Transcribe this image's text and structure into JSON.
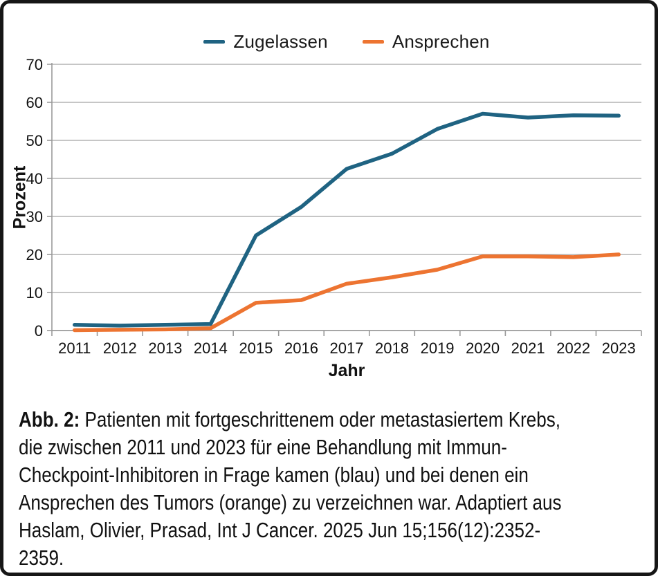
{
  "chart_data": {
    "type": "line",
    "categories": [
      "2011",
      "2012",
      "2013",
      "2014",
      "2015",
      "2016",
      "2017",
      "2018",
      "2019",
      "2020",
      "2021",
      "2022",
      "2023"
    ],
    "series": [
      {
        "name": "Zugelassen",
        "color": "#1f6382",
        "values": [
          1.5,
          1.3,
          1.5,
          1.7,
          25,
          32.5,
          42.5,
          46.5,
          53,
          57,
          56,
          56.6,
          56.5
        ]
      },
      {
        "name": "Ansprechen",
        "color": "#ed7431",
        "values": [
          0.1,
          0.2,
          0.3,
          0.6,
          7.3,
          8,
          12.3,
          14,
          16,
          19.5,
          19.5,
          19.3,
          20
        ]
      }
    ],
    "title": "",
    "xlabel": "Jahr",
    "ylabel": "Prozent",
    "ylim": [
      0,
      70
    ],
    "yticks": [
      0,
      10,
      20,
      30,
      40,
      50,
      60,
      70
    ],
    "grid": true,
    "legend_position": "top"
  },
  "caption": {
    "prefix": "Abb. 2:",
    "lines": [
      "Patienten mit fortgeschrittenem oder metastasiertem Krebs,",
      "die zwischen 2011 und 2023 für eine Behandlung mit Immun-",
      "Checkpoint-Inhibitoren in Frage kamen (blau) und bei denen ein",
      "Ansprechen des Tumors (orange) zu verzeichnen war. Adaptiert aus",
      "Haslam, Olivier, Prasad, Int J Cancer. 2025 Jun 15;156(12):2352-",
      "2359."
    ]
  },
  "colors": {
    "axis": "#999999",
    "grid": "#b3b3b3",
    "text": "#111111",
    "frame_border": "#161616",
    "background": "#ffffff"
  }
}
